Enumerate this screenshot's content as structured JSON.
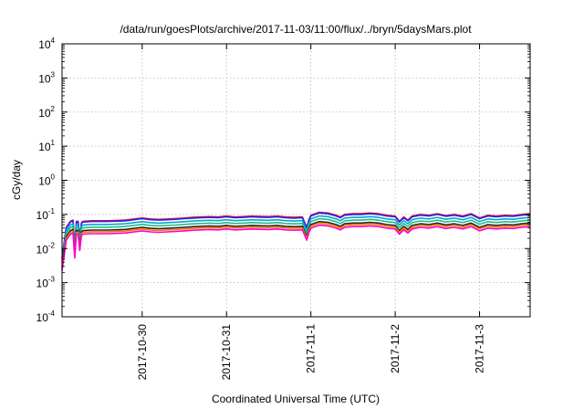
{
  "chart_data": {
    "type": "line",
    "title": "/data/run/goesPlots/archive/2017-11-03/11:00/flux/../bryn/5daysMars.plot",
    "xlabel": "Coordinated Universal Time (UTC)",
    "ylabel": "cGy/day",
    "x_ticks": [
      "2017-10-30",
      "2017-10-31",
      "2017-11-1",
      "2017-11-2",
      "2017-11-3"
    ],
    "x_range_days": [
      -1.95,
      3.6
    ],
    "y_scale": "log",
    "y_range": [
      0.0001,
      10000
    ],
    "y_ticks": [
      {
        "base": "10",
        "exp": "-4"
      },
      {
        "base": "10",
        "exp": "-3"
      },
      {
        "base": "10",
        "exp": "-2"
      },
      {
        "base": "10",
        "exp": "-1"
      },
      {
        "base": "10",
        "exp": "0"
      },
      {
        "base": "10",
        "exp": "1"
      },
      {
        "base": "10",
        "exp": "2"
      },
      {
        "base": "10",
        "exp": "3"
      },
      {
        "base": "10",
        "exp": "4"
      }
    ],
    "grid": true,
    "legend": "none",
    "series": [
      {
        "color": "#ff0000",
        "factor": 1.05
      },
      {
        "color": "#2222ff",
        "factor": 1.0
      },
      {
        "color": "#00aacc",
        "factor": 0.82
      },
      {
        "color": "#22bb88",
        "factor": 0.68
      },
      {
        "color": "#222222",
        "factor": 0.56
      },
      {
        "color": "#ff7700",
        "factor": 0.5
      },
      {
        "color": "#ff00cc",
        "factor": 0.44
      }
    ],
    "base_profile": {
      "x": [
        -1.95,
        -1.9,
        -1.85,
        -1.82,
        -1.8,
        -1.78,
        -1.76,
        -1.74,
        -1.72,
        -1.7,
        -1.6,
        -1.4,
        -1.2,
        -1.0,
        -0.9,
        -0.8,
        -0.7,
        -0.6,
        -0.5,
        -0.4,
        -0.3,
        -0.2,
        -0.1,
        0.0,
        0.1,
        0.2,
        0.3,
        0.4,
        0.5,
        0.6,
        0.7,
        0.8,
        0.9,
        0.95,
        0.98,
        1.0,
        1.05,
        1.1,
        1.2,
        1.3,
        1.35,
        1.4,
        1.5,
        1.6,
        1.7,
        1.8,
        1.9,
        2.0,
        2.05,
        2.1,
        2.15,
        2.2,
        2.3,
        2.4,
        2.5,
        2.6,
        2.7,
        2.8,
        2.9,
        3.0,
        3.1,
        3.2,
        3.3,
        3.4,
        3.5,
        3.6
      ],
      "y": [
        0.005,
        0.04,
        0.06,
        0.065,
        0.012,
        0.06,
        0.06,
        0.02,
        0.055,
        0.06,
        0.062,
        0.062,
        0.065,
        0.075,
        0.07,
        0.068,
        0.07,
        0.072,
        0.075,
        0.078,
        0.08,
        0.082,
        0.08,
        0.085,
        0.08,
        0.082,
        0.085,
        0.083,
        0.082,
        0.085,
        0.08,
        0.078,
        0.08,
        0.04,
        0.07,
        0.09,
        0.1,
        0.11,
        0.105,
        0.09,
        0.08,
        0.095,
        0.1,
        0.1,
        0.105,
        0.1,
        0.09,
        0.085,
        0.06,
        0.08,
        0.065,
        0.085,
        0.095,
        0.09,
        0.1,
        0.088,
        0.095,
        0.085,
        0.1,
        0.075,
        0.09,
        0.085,
        0.09,
        0.088,
        0.095,
        0.1
      ]
    }
  }
}
